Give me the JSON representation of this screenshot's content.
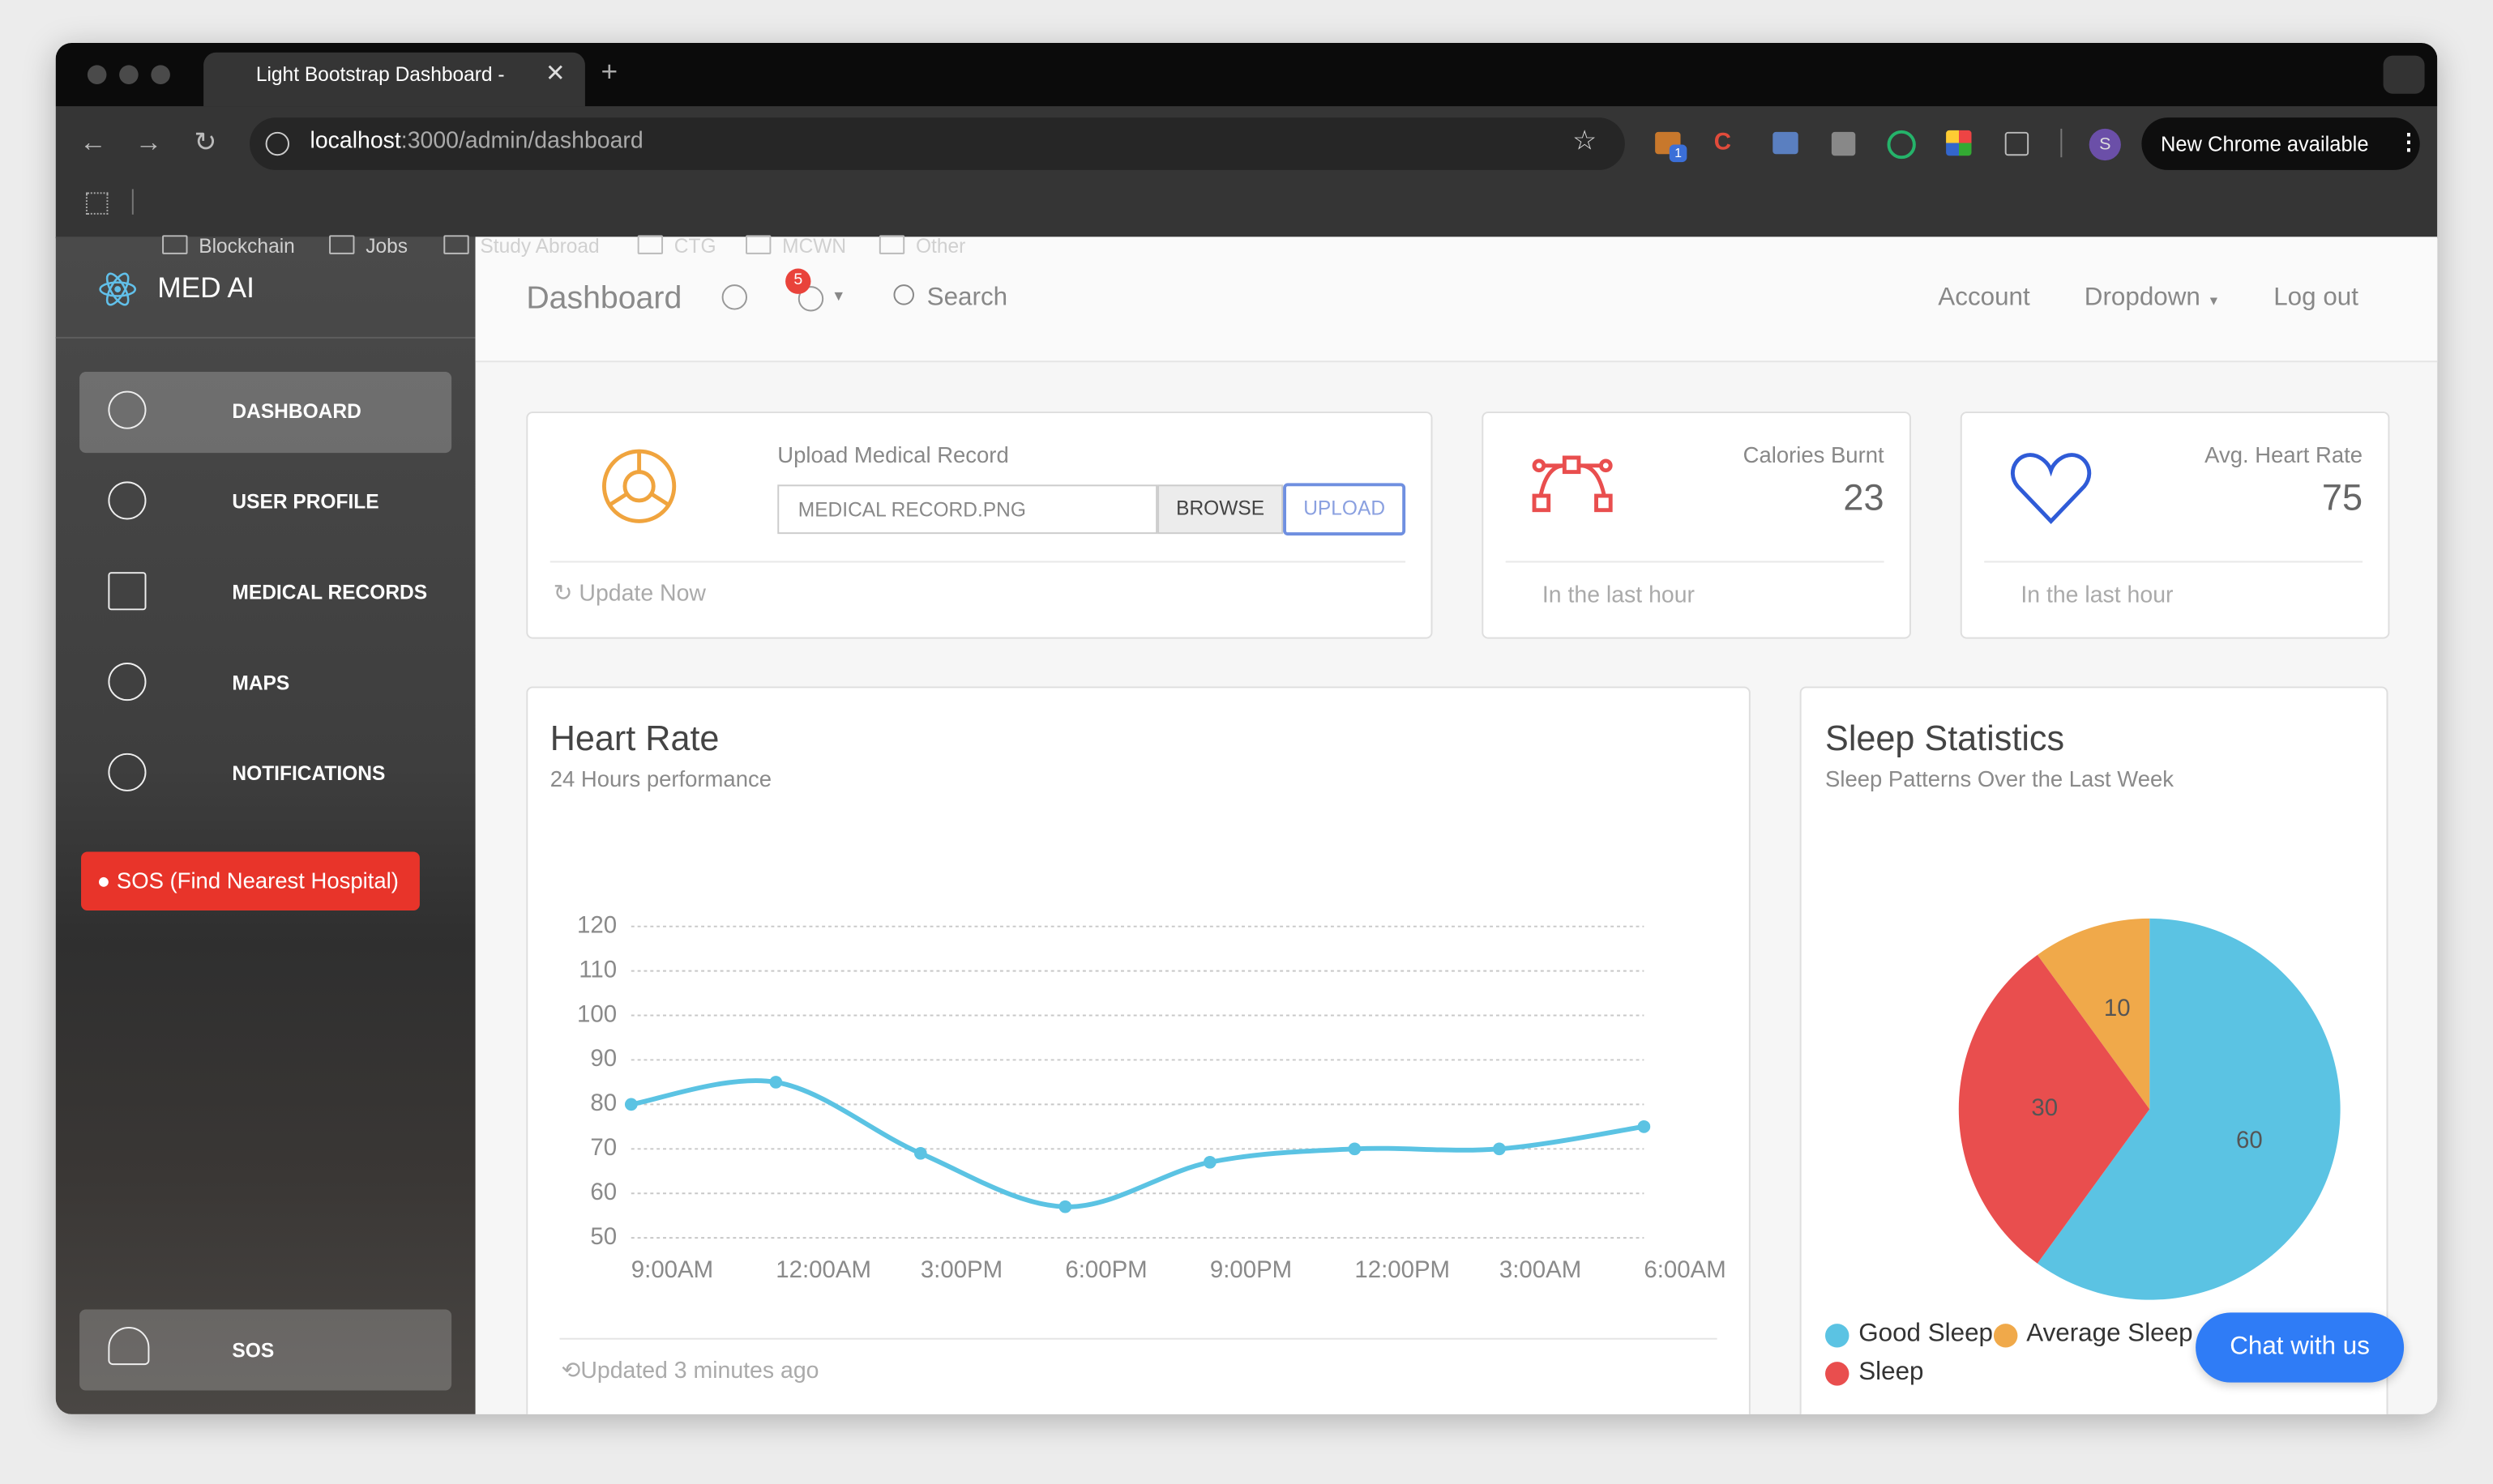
{
  "browser": {
    "tab_title": "Light Bootstrap Dashboard - ",
    "url_host": "localhost",
    "url_path": ":3000/admin/dashboard",
    "bookmarks": [
      "Blockchain",
      "Jobs",
      "Study Abroad",
      "CTG",
      "MCWN",
      "Other"
    ],
    "extension_badge": "1",
    "profile": "S",
    "update_button": "New Chrome available"
  },
  "sidebar": {
    "brand": "MED AI",
    "nav": [
      "DASHBOARD",
      "USER PROFILE",
      "MEDICAL RECORDS",
      "MAPS",
      "NOTIFICATIONS"
    ],
    "sos_button": "SOS (Find Nearest Hospital)",
    "bottom_item": "SOS"
  },
  "navbar": {
    "title": "Dashboard",
    "notification_count": 5,
    "search": "Search",
    "links": [
      "Account",
      "Dropdown",
      "Log out"
    ]
  },
  "cards": {
    "upload": {
      "title": "Upload Medical Record",
      "file_name": "MEDICAL RECORD.PNG",
      "browse": "BROWSE",
      "upload": "UPLOAD",
      "footer": "Update Now"
    },
    "calories": {
      "title": "Calories Burnt",
      "value": 23,
      "footer": "In the last hour"
    },
    "heart": {
      "title": "Avg. Heart Rate",
      "value": 75,
      "footer": "In the last hour"
    }
  },
  "chart_data": [
    {
      "type": "line",
      "title": "Heart Rate",
      "subtitle": "24 Hours performance",
      "categories": [
        "9:00AM",
        "12:00AM",
        "3:00PM",
        "6:00PM",
        "9:00PM",
        "12:00PM",
        "3:00AM",
        "6:00AM"
      ],
      "values": [
        80,
        85,
        69,
        57,
        67,
        70,
        70,
        75
      ],
      "color": "#5bc3e3",
      "ylim": [
        50,
        120
      ],
      "yticks": [
        50,
        60,
        70,
        80,
        90,
        100,
        110,
        120
      ],
      "grid": true,
      "footer": "Updated 3 minutes ago"
    },
    {
      "type": "pie",
      "title": "Sleep Statistics",
      "subtitle": "Sleep Patterns Over the Last Week",
      "series": [
        {
          "name": "Good Sleep",
          "color": "#5bc3e3",
          "values": [
            60
          ]
        },
        {
          "name": "Average Sleep",
          "color": "#f0a94a",
          "values": [
            10
          ]
        },
        {
          "name": "Sleep",
          "color": "#e94e4e",
          "values": [
            30
          ]
        }
      ]
    }
  ],
  "chat_button": "Chat with us"
}
